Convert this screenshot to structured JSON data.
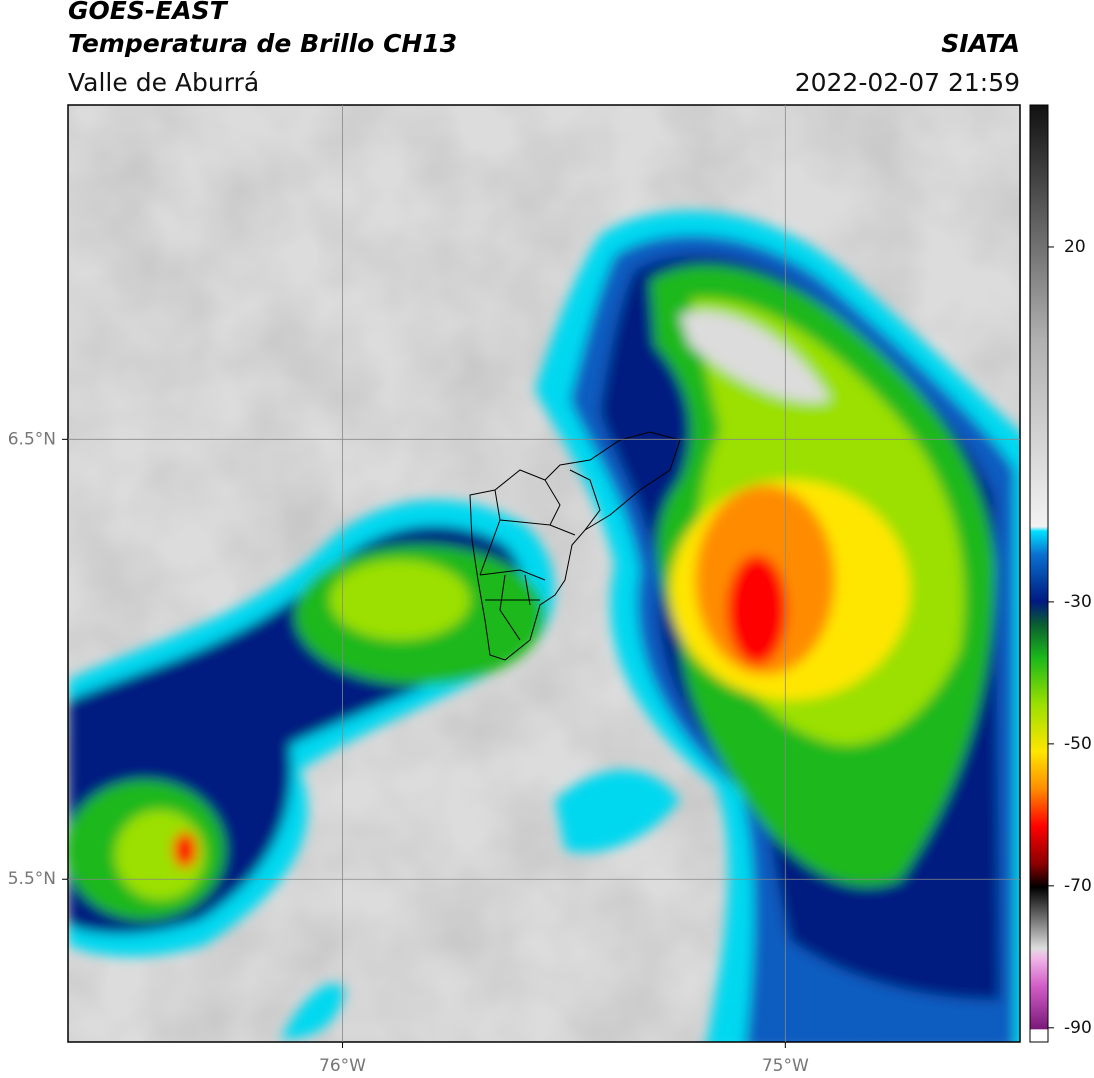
{
  "chart_data": {
    "type": "map",
    "title": "GOES-EAST",
    "subtitle": "Temperatura de Brillo CH13",
    "region": "Valle de Aburrá",
    "source": "SIATA",
    "datetime": "2022-02-07 21:59",
    "xlim": [
      -76.62,
      -74.47
    ],
    "ylim": [
      5.13,
      7.26
    ],
    "xticks": [
      {
        "value": -76,
        "label": "76°W"
      },
      {
        "value": -75,
        "label": "75°W"
      }
    ],
    "yticks": [
      {
        "value": 5.5,
        "label": "5.5°N"
      },
      {
        "value": 6.5,
        "label": "6.5°N"
      }
    ],
    "grid": true,
    "colorbar": {
      "lim": [
        -92,
        40
      ],
      "ticks": [
        -90,
        -70,
        -50,
        -30,
        20
      ]
    }
  }
}
